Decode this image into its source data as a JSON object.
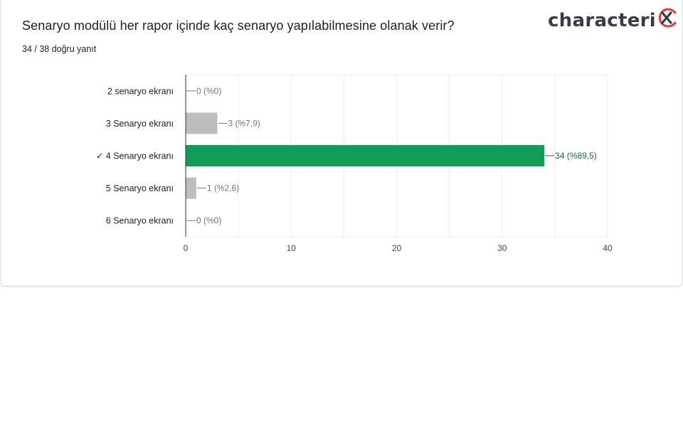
{
  "question": "Senaryo modülü her rapor içinde kaç senaryo yapılabilmesine olanak verir?",
  "score": "34 / 38 doğru yanıt",
  "logo": {
    "text": "characteri",
    "icon": "x-in-circle-mark"
  },
  "colors": {
    "correct": "#0f9d58",
    "incorrect": "#bdbdbd",
    "correct_label": "#137333",
    "label": "#757575",
    "grid": "#ececec",
    "axis": "#333333"
  },
  "chart_data": {
    "type": "bar",
    "orientation": "horizontal",
    "categories": [
      "2 senaryo ekranı",
      "3 Senaryo ekranı",
      "✓ 4 Senaryo ekranı",
      "5 Senaryo ekranı",
      "6 Senaryo ekranı"
    ],
    "values": [
      0,
      3,
      34,
      1,
      0
    ],
    "data_labels": [
      "0 (%0)",
      "3 (%7,9)",
      "34 (%89,5)",
      "1 (%2,6)",
      "0 (%0)"
    ],
    "correct_index": 2,
    "xlim": [
      0,
      40
    ],
    "xticks": [
      0,
      10,
      20,
      30,
      40
    ],
    "title": "",
    "xlabel": "",
    "ylabel": "",
    "grid": true,
    "legend": "none"
  }
}
